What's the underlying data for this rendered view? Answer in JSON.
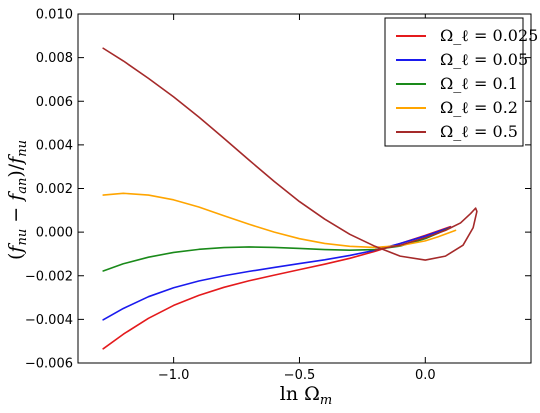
{
  "chart_data": {
    "type": "line",
    "xlabel": "ln Ω_m",
    "ylabel": "(f_nu − f_an)/f_nu",
    "xlim": [
      -1.38,
      0.42
    ],
    "ylim": [
      -0.006,
      0.01
    ],
    "xticks": [
      -1.0,
      -0.5,
      0.0
    ],
    "xtick_labels": [
      "−1.0",
      "−0.5",
      "0.0"
    ],
    "yticks": [
      -0.006,
      -0.004,
      -0.002,
      0.0,
      0.002,
      0.004,
      0.006,
      0.008,
      0.01
    ],
    "ytick_labels": [
      "−0.006",
      "−0.004",
      "−0.002",
      "0.000",
      "0.002",
      "0.004",
      "0.006",
      "0.008",
      "0.010"
    ],
    "grid": false,
    "legend_position": "top-right",
    "series": [
      {
        "name": "Ω_ℓ = 0.025",
        "color": "#e41a1c",
        "points": [
          [
            -1.28,
            -0.00535
          ],
          [
            -1.2,
            -0.00468
          ],
          [
            -1.1,
            -0.00395
          ],
          [
            -1.0,
            -0.00336
          ],
          [
            -0.9,
            -0.0029
          ],
          [
            -0.8,
            -0.00253
          ],
          [
            -0.7,
            -0.00223
          ],
          [
            -0.6,
            -0.00197
          ],
          [
            -0.5,
            -0.00172
          ],
          [
            -0.4,
            -0.00147
          ],
          [
            -0.3,
            -0.0012
          ],
          [
            -0.2,
            -0.00088
          ],
          [
            -0.1,
            -0.00052
          ],
          [
            0.0,
            -0.00015
          ],
          [
            0.05,
            5e-05
          ],
          [
            0.1,
            0.00025
          ]
        ]
      },
      {
        "name": "Ω_ℓ = 0.05",
        "color": "#1a1aee",
        "points": [
          [
            -1.28,
            -0.00402
          ],
          [
            -1.2,
            -0.0035
          ],
          [
            -1.1,
            -0.00296
          ],
          [
            -1.0,
            -0.00255
          ],
          [
            -0.9,
            -0.00224
          ],
          [
            -0.8,
            -0.002
          ],
          [
            -0.7,
            -0.0018
          ],
          [
            -0.6,
            -0.00162
          ],
          [
            -0.5,
            -0.00144
          ],
          [
            -0.4,
            -0.00127
          ],
          [
            -0.3,
            -0.00107
          ],
          [
            -0.2,
            -0.00083
          ],
          [
            -0.1,
            -0.00052
          ],
          [
            0.0,
            -0.00018
          ],
          [
            0.05,
            2e-05
          ],
          [
            0.1,
            0.00022
          ]
        ]
      },
      {
        "name": "Ω_ℓ = 0.1",
        "color": "#1a8a1a",
        "points": [
          [
            -1.28,
            -0.00178
          ],
          [
            -1.2,
            -0.00145
          ],
          [
            -1.1,
            -0.00115
          ],
          [
            -1.0,
            -0.00093
          ],
          [
            -0.9,
            -0.00079
          ],
          [
            -0.8,
            -0.00071
          ],
          [
            -0.7,
            -0.00068
          ],
          [
            -0.6,
            -0.0007
          ],
          [
            -0.5,
            -0.00075
          ],
          [
            -0.4,
            -0.0008
          ],
          [
            -0.3,
            -0.00083
          ],
          [
            -0.2,
            -0.0008
          ],
          [
            -0.1,
            -0.00064
          ],
          [
            0.0,
            -0.0003
          ],
          [
            0.05,
            -5e-05
          ],
          [
            0.1,
            0.0002
          ]
        ]
      },
      {
        "name": "Ω_ℓ = 0.2",
        "color": "#ffa500",
        "points": [
          [
            -1.28,
            0.0017
          ],
          [
            -1.2,
            0.00178
          ],
          [
            -1.1,
            0.0017
          ],
          [
            -1.0,
            0.00148
          ],
          [
            -0.9,
            0.00115
          ],
          [
            -0.8,
            0.00075
          ],
          [
            -0.7,
            0.00036
          ],
          [
            -0.6,
            0.0
          ],
          [
            -0.5,
            -0.0003
          ],
          [
            -0.4,
            -0.00052
          ],
          [
            -0.3,
            -0.00065
          ],
          [
            -0.2,
            -0.0007
          ],
          [
            -0.1,
            -0.00062
          ],
          [
            0.0,
            -0.0004
          ],
          [
            0.05,
            -0.00022
          ],
          [
            0.12,
            8e-05
          ]
        ]
      },
      {
        "name": "Ω_ℓ = 0.5",
        "color": "#a52a2a",
        "points": [
          [
            -1.28,
            0.00843
          ],
          [
            -1.2,
            0.00785
          ],
          [
            -1.1,
            0.00705
          ],
          [
            -1.0,
            0.0062
          ],
          [
            -0.9,
            0.00528
          ],
          [
            -0.8,
            0.0043
          ],
          [
            -0.7,
            0.0033
          ],
          [
            -0.6,
            0.00232
          ],
          [
            -0.5,
            0.0014
          ],
          [
            -0.4,
            0.0006
          ],
          [
            -0.3,
            -0.0001
          ],
          [
            -0.2,
            -0.00065
          ],
          [
            -0.1,
            -0.0011
          ],
          [
            0.0,
            -0.00128
          ],
          [
            0.08,
            -0.0011
          ],
          [
            0.15,
            -0.0006
          ],
          [
            0.19,
            0.0002
          ],
          [
            0.205,
            0.00095
          ],
          [
            0.2,
            0.0011
          ],
          [
            0.18,
            0.00085
          ],
          [
            0.14,
            0.00042
          ],
          [
            0.08,
            8e-05
          ],
          [
            0.0,
            -0.00025
          ],
          [
            -0.1,
            -0.0006
          ],
          [
            -0.2,
            -0.00082
          ]
        ]
      }
    ]
  }
}
